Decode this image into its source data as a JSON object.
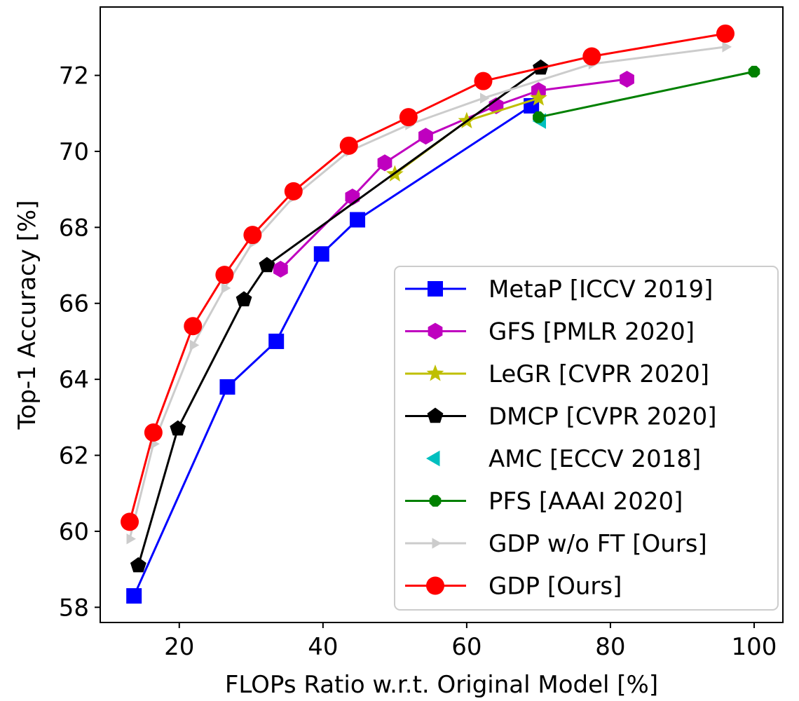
{
  "chart_data": {
    "type": "line",
    "title": "",
    "xlabel": "FLOPs Ratio w.r.t. Original Model [%]",
    "ylabel": "Top-1 Accuracy [%]",
    "xlim": [
      9,
      104
    ],
    "ylim": [
      57.6,
      73.8
    ],
    "xticks": [
      20,
      40,
      60,
      80,
      100
    ],
    "yticks": [
      58,
      60,
      62,
      64,
      66,
      68,
      70,
      72
    ],
    "grid": false,
    "legend_position": "lower-right",
    "series": [
      {
        "name": "MetaP [ICCV 2019]",
        "color": "#0000ff",
        "marker": "square",
        "line": true,
        "points": [
          [
            13.7,
            58.3
          ],
          [
            26.7,
            63.8
          ],
          [
            33.5,
            65.0
          ],
          [
            39.8,
            67.3
          ],
          [
            44.8,
            68.2
          ],
          [
            69.0,
            71.2
          ]
        ]
      },
      {
        "name": "GFS [PMLR 2020]",
        "color": "#bf00bf",
        "marker": "hexagon",
        "line": true,
        "points": [
          [
            34.1,
            66.9
          ],
          [
            44.1,
            68.8
          ],
          [
            48.6,
            69.7
          ],
          [
            54.3,
            70.4
          ],
          [
            64.1,
            71.2
          ],
          [
            70.0,
            71.6
          ],
          [
            82.3,
            71.9
          ]
        ]
      },
      {
        "name": "LeGR [CVPR 2020]",
        "color": "#bfbf00",
        "marker": "star",
        "line": true,
        "points": [
          [
            50.0,
            69.4
          ],
          [
            60.0,
            70.8
          ],
          [
            70.0,
            71.4
          ]
        ]
      },
      {
        "name": "DMCP [CVPR 2020]",
        "color": "#000000",
        "marker": "pentagon",
        "line": true,
        "points": [
          [
            14.3,
            59.1
          ],
          [
            19.8,
            62.7
          ],
          [
            29.0,
            66.1
          ],
          [
            32.2,
            67.0
          ],
          [
            70.3,
            72.2
          ]
        ]
      },
      {
        "name": "AMC [ECCV 2018]",
        "color": "#00bfbf",
        "marker": "triangle-left",
        "line": false,
        "points": [
          [
            70.4,
            70.8
          ]
        ]
      },
      {
        "name": "PFS [AAAI 2020]",
        "color": "#008000",
        "marker": "octagon",
        "line": true,
        "points": [
          [
            70.0,
            70.9
          ],
          [
            100.0,
            72.1
          ]
        ]
      },
      {
        "name": "GDP w/o FT [Ours]",
        "color": "#cccccc",
        "marker": "triangle-right",
        "line": true,
        "points": [
          [
            13.1,
            59.8
          ],
          [
            16.4,
            62.3
          ],
          [
            21.9,
            64.9
          ],
          [
            26.3,
            66.4
          ],
          [
            30.2,
            67.6
          ],
          [
            35.9,
            68.8
          ],
          [
            43.6,
            70.0
          ],
          [
            51.9,
            70.7
          ],
          [
            62.3,
            71.4
          ],
          [
            77.4,
            72.3
          ],
          [
            96.0,
            72.75
          ]
        ]
      },
      {
        "name": "GDP [Ours]",
        "color": "#ff0000",
        "marker": "circle",
        "line": true,
        "points": [
          [
            13.1,
            60.25
          ],
          [
            16.4,
            62.6
          ],
          [
            21.9,
            65.4
          ],
          [
            26.3,
            66.75
          ],
          [
            30.2,
            67.8
          ],
          [
            35.9,
            68.95
          ],
          [
            43.6,
            70.15
          ],
          [
            51.9,
            70.9
          ],
          [
            62.3,
            71.85
          ],
          [
            77.4,
            72.5
          ],
          [
            96.0,
            73.1
          ]
        ]
      }
    ]
  }
}
